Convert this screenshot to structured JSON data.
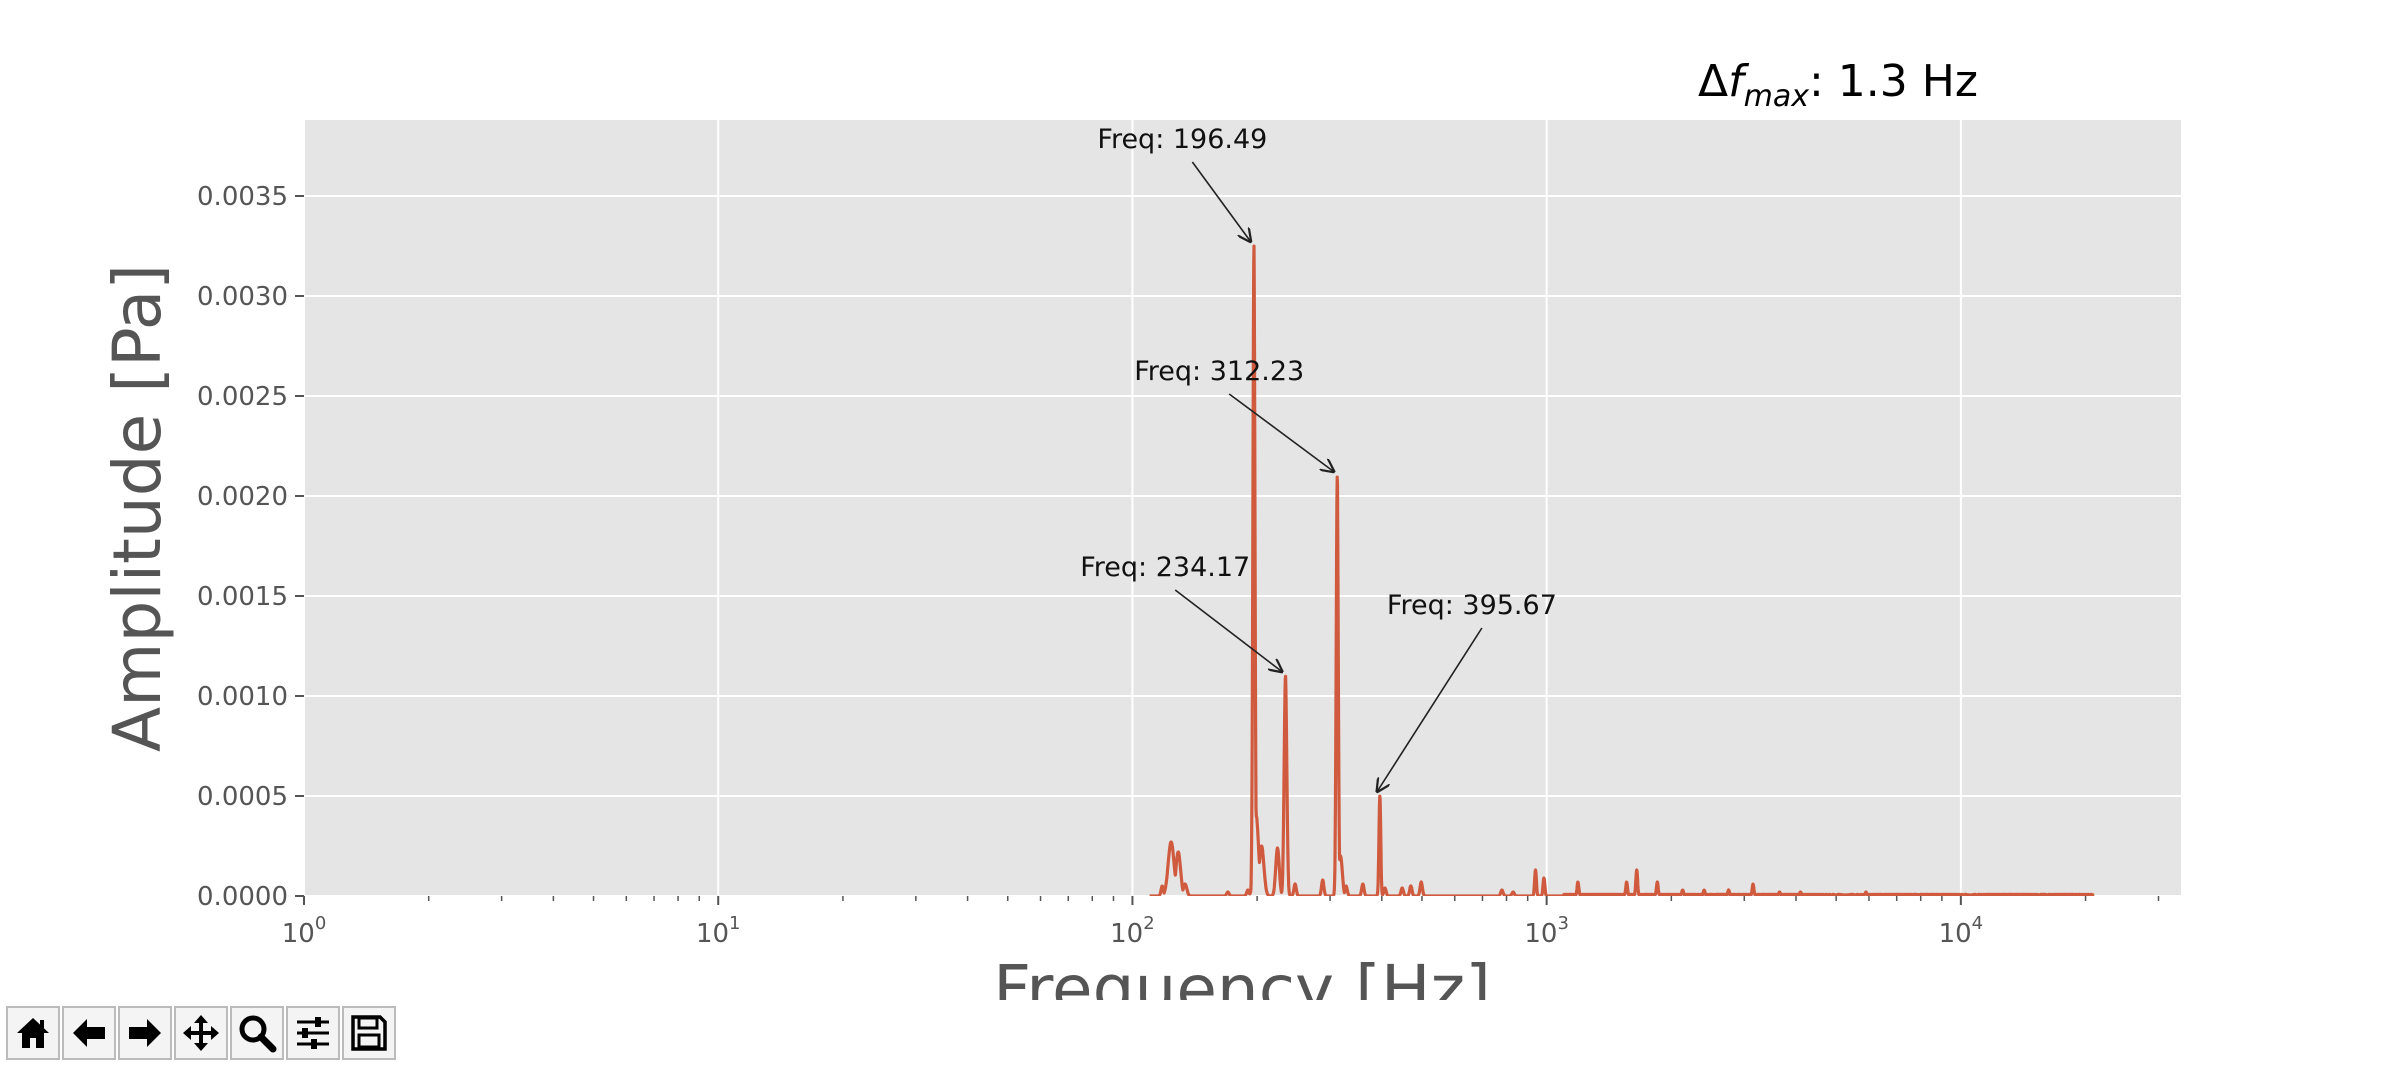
{
  "chart_data": {
    "type": "line",
    "title": "",
    "subtitle_parts": {
      "prefix": "Δ",
      "f": "f",
      "sub": "max",
      "value": ": 1.3 Hz"
    },
    "xlabel": "Frequency [Hz]",
    "ylabel": "Amplitude [Pa]",
    "xscale": "log",
    "xlim": [
      1,
      34000
    ],
    "ylim": [
      0,
      0.00388
    ],
    "grid": true,
    "x_tick_labels": [
      {
        "value": 1,
        "base": "10",
        "exp": "0"
      },
      {
        "value": 10,
        "base": "10",
        "exp": "1"
      },
      {
        "value": 100,
        "base": "10",
        "exp": "2"
      },
      {
        "value": 1000,
        "base": "10",
        "exp": "3"
      },
      {
        "value": 10000,
        "base": "10",
        "exp": "4"
      }
    ],
    "y_ticks": [
      {
        "value": 0,
        "label": "0.0000"
      },
      {
        "value": 0.0005,
        "label": "0.0005"
      },
      {
        "value": 0.001,
        "label": "0.0010"
      },
      {
        "value": 0.0015,
        "label": "0.0015"
      },
      {
        "value": 0.002,
        "label": "0.0020"
      },
      {
        "value": 0.0025,
        "label": "0.0025"
      },
      {
        "value": 0.003,
        "label": "0.0030"
      },
      {
        "value": 0.0035,
        "label": "0.0035"
      }
    ],
    "series": [
      {
        "color": "#d05a3e",
        "peaks": [
          {
            "f": 118,
            "a": 5e-05,
            "w": 0.004
          },
          {
            "f": 124,
            "a": 0.00027,
            "w": 0.01
          },
          {
            "f": 129,
            "a": 0.00022,
            "w": 0.008
          },
          {
            "f": 134,
            "a": 6e-05,
            "w": 0.006
          },
          {
            "f": 170,
            "a": 2e-05,
            "w": 0.004
          },
          {
            "f": 190,
            "a": 3e-05,
            "w": 0.004
          },
          {
            "f": 196.49,
            "a": 0.00325,
            "w": 0.0035
          },
          {
            "f": 199,
            "a": 0.0004,
            "w": 0.008
          },
          {
            "f": 205,
            "a": 0.00025,
            "w": 0.008
          },
          {
            "f": 224,
            "a": 0.00024,
            "w": 0.006
          },
          {
            "f": 234.17,
            "a": 0.0011,
            "w": 0.0045
          },
          {
            "f": 247,
            "a": 6e-05,
            "w": 0.004
          },
          {
            "f": 288,
            "a": 8e-05,
            "w": 0.004
          },
          {
            "f": 312.23,
            "a": 0.0021,
            "w": 0.0035
          },
          {
            "f": 318,
            "a": 0.0002,
            "w": 0.006
          },
          {
            "f": 328,
            "a": 5e-05,
            "w": 0.004
          },
          {
            "f": 360,
            "a": 6e-05,
            "w": 0.004
          },
          {
            "f": 395.67,
            "a": 0.0005,
            "w": 0.003
          },
          {
            "f": 407,
            "a": 4e-05,
            "w": 0.004
          },
          {
            "f": 448,
            "a": 4e-05,
            "w": 0.004
          },
          {
            "f": 470,
            "a": 5e-05,
            "w": 0.004
          },
          {
            "f": 498,
            "a": 7e-05,
            "w": 0.004
          },
          {
            "f": 780,
            "a": 3e-05,
            "w": 0.004
          },
          {
            "f": 830,
            "a": 2e-05,
            "w": 0.004
          },
          {
            "f": 940,
            "a": 0.00013,
            "w": 0.003
          },
          {
            "f": 985,
            "a": 9e-05,
            "w": 0.003
          },
          {
            "f": 1190,
            "a": 7e-05,
            "w": 0.003
          },
          {
            "f": 1560,
            "a": 7e-05,
            "w": 0.003
          },
          {
            "f": 1650,
            "a": 0.00013,
            "w": 0.003
          },
          {
            "f": 1850,
            "a": 7e-05,
            "w": 0.003
          },
          {
            "f": 2130,
            "a": 3e-05,
            "w": 0.003
          },
          {
            "f": 2400,
            "a": 3e-05,
            "w": 0.003
          },
          {
            "f": 2750,
            "a": 3e-05,
            "w": 0.003
          },
          {
            "f": 3150,
            "a": 6e-05,
            "w": 0.003
          },
          {
            "f": 3650,
            "a": 2e-05,
            "w": 0.003
          },
          {
            "f": 4100,
            "a": 2e-05,
            "w": 0.003
          },
          {
            "f": 5900,
            "a": 2e-05,
            "w": 0.003
          }
        ],
        "noise_floor": {
          "from": 1100,
          "to": 21000,
          "a": 8e-06
        }
      }
    ],
    "annotations": [
      {
        "label": "Freq: 196.49",
        "x": 196.49,
        "y": 0.00325,
        "text_x": 132,
        "text_y": 0.00374
      },
      {
        "label": "Freq: 312.23",
        "x": 312.23,
        "y": 0.0021,
        "text_x": 162,
        "text_y": 0.00258
      },
      {
        "label": "Freq: 234.17",
        "x": 234.17,
        "y": 0.0011,
        "text_x": 120,
        "text_y": 0.0016
      },
      {
        "label": "Freq: 395.67",
        "x": 395.67,
        "y": 0.0005,
        "text_x": 660,
        "text_y": 0.00141
      }
    ]
  },
  "toolbar": {
    "buttons": [
      {
        "name": "home-icon"
      },
      {
        "name": "back-arrow-icon"
      },
      {
        "name": "forward-arrow-icon"
      },
      {
        "name": "pan-icon"
      },
      {
        "name": "zoom-icon"
      },
      {
        "name": "configure-subplots-icon"
      },
      {
        "name": "save-icon"
      }
    ]
  }
}
